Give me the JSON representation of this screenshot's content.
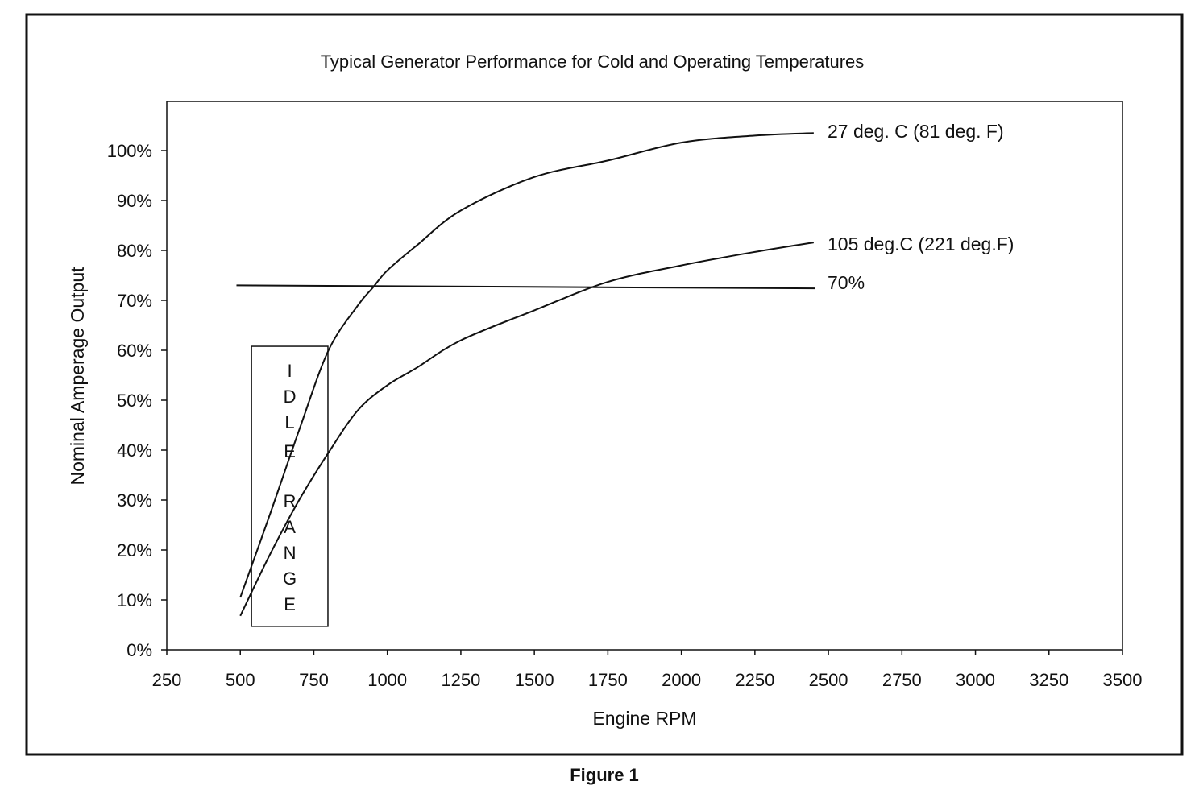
{
  "chart_data": {
    "type": "line",
    "title": "Typical Generator Performance for Cold and Operating Temperatures",
    "xlabel": "Engine RPM",
    "ylabel": "Nominal Amperage Output",
    "caption": "Figure 1",
    "xlim": [
      250,
      3500
    ],
    "ylim": [
      0,
      110
    ],
    "x_ticks": [
      250,
      500,
      750,
      1000,
      1250,
      1500,
      1750,
      2000,
      2250,
      2500,
      2750,
      3000,
      3250,
      3500
    ],
    "y_ticks": [
      0,
      10,
      20,
      30,
      40,
      50,
      60,
      70,
      80,
      90,
      100
    ],
    "y_tick_labels": [
      "0%",
      "10%",
      "20%",
      "30%",
      "40%",
      "50%",
      "60%",
      "70%",
      "80%",
      "90%",
      "100%"
    ],
    "grid": false,
    "series": [
      {
        "name": "27 deg. C (81 deg. F)",
        "x": [
          500,
          600,
          700,
          800,
          900,
          950,
          1000,
          1100,
          1250,
          1500,
          1750,
          2000,
          2250,
          2450
        ],
        "y": [
          10.5,
          27,
          44,
          60,
          69,
          72.5,
          76,
          81,
          88,
          94.7,
          98,
          101.6,
          103,
          103.5
        ]
      },
      {
        "name": "105 deg.C (221 deg.F)",
        "x": [
          500,
          600,
          700,
          800,
          900,
          1000,
          1100,
          1250,
          1500,
          1750,
          2000,
          2250,
          2450
        ],
        "y": [
          6.8,
          19,
          30,
          39.5,
          48,
          53,
          56.5,
          62,
          68,
          73.7,
          77,
          79.7,
          81.6
        ]
      },
      {
        "name": "70%",
        "x": [
          487,
          2455
        ],
        "y": [
          73,
          72.4
        ]
      }
    ],
    "annotations": [
      {
        "text": "IDLE RANGE",
        "x_range": [
          538,
          798
        ],
        "y_range": [
          4.7,
          60.8
        ]
      }
    ]
  }
}
